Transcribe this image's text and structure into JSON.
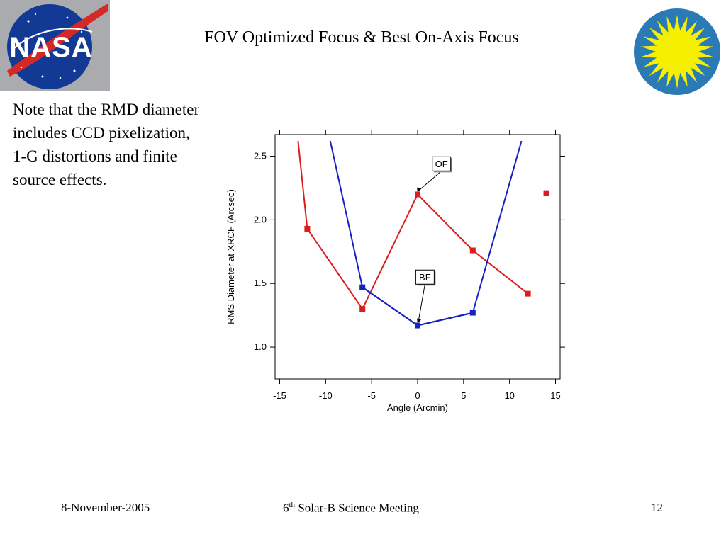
{
  "slide": {
    "title": "FOV Optimized Focus & Best On-Axis Focus",
    "note": "Note that the RMD diameter includes CCD pixelization, 1-G distortions and finite source effects.",
    "logos": {
      "left": "nasa-logo",
      "right": "sun-logo"
    }
  },
  "footer": {
    "date": "8-November-2005",
    "meeting_ordinal": "6",
    "meeting_suffix": "th",
    "meeting_rest": " Solar-B Science Meeting",
    "page": "12"
  },
  "colors": {
    "red": "#dd1c1c",
    "blue": "#1521c2",
    "nasa_blue": "#123a94",
    "sun_yellow": "#f4f000"
  },
  "chart_data": {
    "type": "line",
    "xlabel": "Angle (Arcmin)",
    "ylabel": "RMS Diameter at XRCF (Arcsec)",
    "xlim": [
      -15.5,
      15.5
    ],
    "ylim": [
      0.75,
      2.67
    ],
    "xticks": [
      -15,
      -10,
      -5,
      0,
      5,
      10,
      15
    ],
    "yticks": [
      1.0,
      1.5,
      2.0,
      2.5
    ],
    "ytick_labels": [
      "1.0",
      "1.5",
      "2.0",
      "2.5"
    ],
    "grid": false,
    "series": [
      {
        "color": "#dd1c1c",
        "curve_x": [
          -13.0,
          -12.0
        ],
        "curve_y": [
          2.62,
          1.93
        ],
        "x": [
          -12,
          -6,
          0,
          6,
          12,
          14
        ],
        "y": [
          1.93,
          1.3,
          2.2,
          1.76,
          1.42,
          2.21
        ],
        "points_connected": 5
      },
      {
        "color": "#1521c2",
        "curve_x": [
          -9.5,
          -6.0,
          0.0,
          6.0,
          11.3
        ],
        "curve_y": [
          2.62,
          1.47,
          1.17,
          1.27,
          2.62
        ],
        "x": [
          -6,
          0,
          6
        ],
        "y": [
          1.47,
          1.17,
          1.27
        ]
      }
    ],
    "annotations": [
      {
        "text": "OF",
        "target": [
          0,
          2.2
        ],
        "label_at": [
          2.6,
          2.44
        ]
      },
      {
        "text": "BF",
        "target": [
          0,
          1.17
        ],
        "label_at": [
          0.8,
          1.55
        ]
      }
    ]
  }
}
